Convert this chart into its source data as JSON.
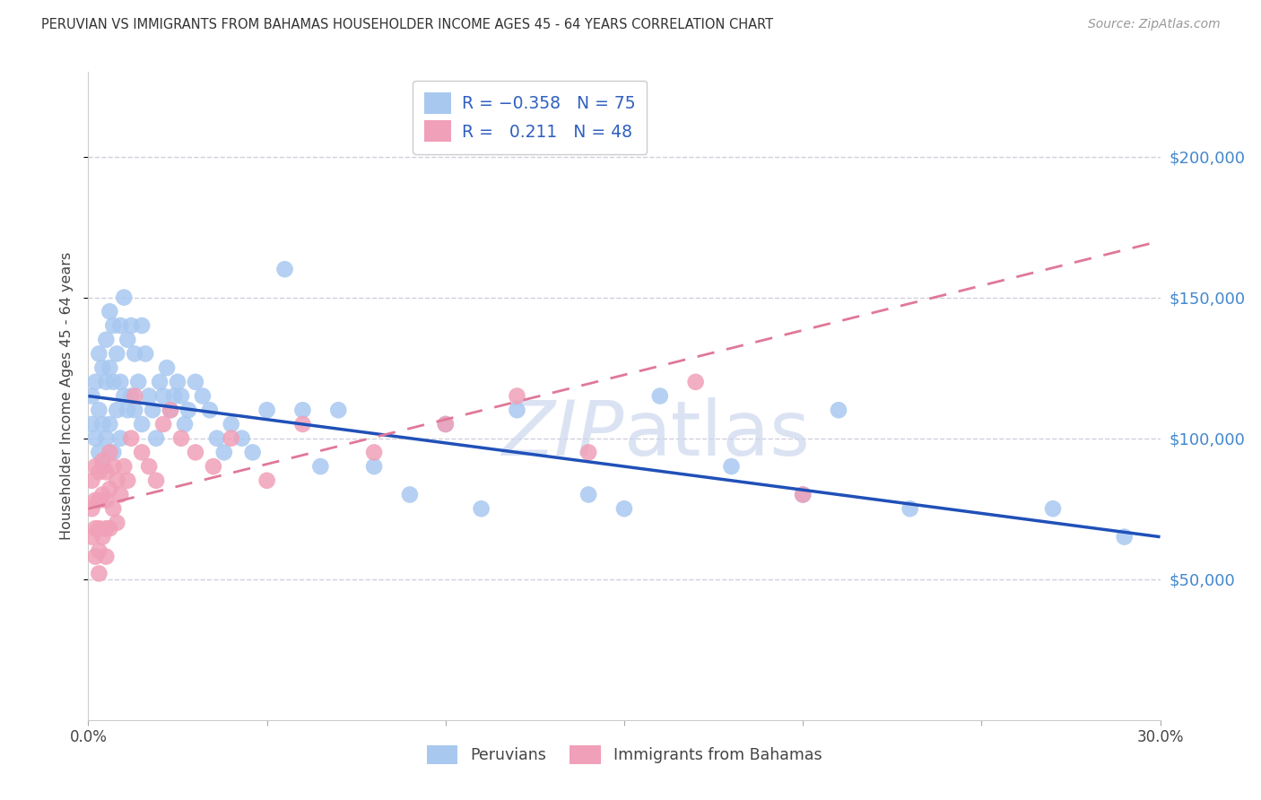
{
  "title": "PERUVIAN VS IMMIGRANTS FROM BAHAMAS HOUSEHOLDER INCOME AGES 45 - 64 YEARS CORRELATION CHART",
  "source": "Source: ZipAtlas.com",
  "ylabel": "Householder Income Ages 45 - 64 years",
  "y_tick_values": [
    50000,
    100000,
    150000,
    200000
  ],
  "y_tick_labels": [
    "$50,000",
    "$100,000",
    "$150,000",
    "$200,000"
  ],
  "peruvians_R": -0.358,
  "peruvians_N": 75,
  "bahamas_R": 0.211,
  "bahamas_N": 48,
  "blue_scatter_color": "#a8c8f0",
  "blue_line_color": "#2050b8",
  "pink_scatter_color": "#f0a0b8",
  "pink_line_color": "#e07898",
  "grid_color": "#d0d0dc",
  "background_color": "#ffffff",
  "right_tick_color": "#4488cc",
  "watermark_color": "#ccd8ee",
  "peruvians_x": [
    0.001,
    0.001,
    0.002,
    0.002,
    0.003,
    0.003,
    0.003,
    0.004,
    0.004,
    0.004,
    0.005,
    0.005,
    0.005,
    0.006,
    0.006,
    0.006,
    0.007,
    0.007,
    0.007,
    0.008,
    0.008,
    0.009,
    0.009,
    0.009,
    0.01,
    0.01,
    0.011,
    0.011,
    0.012,
    0.012,
    0.013,
    0.013,
    0.014,
    0.015,
    0.015,
    0.016,
    0.017,
    0.018,
    0.019,
    0.02,
    0.021,
    0.022,
    0.023,
    0.024,
    0.025,
    0.026,
    0.027,
    0.028,
    0.03,
    0.032,
    0.034,
    0.036,
    0.038,
    0.04,
    0.043,
    0.046,
    0.05,
    0.055,
    0.06,
    0.065,
    0.07,
    0.08,
    0.09,
    0.1,
    0.11,
    0.12,
    0.14,
    0.15,
    0.16,
    0.18,
    0.2,
    0.21,
    0.23,
    0.27,
    0.29
  ],
  "peruvians_y": [
    115000,
    105000,
    120000,
    100000,
    130000,
    110000,
    95000,
    125000,
    105000,
    90000,
    135000,
    120000,
    100000,
    145000,
    125000,
    105000,
    140000,
    120000,
    95000,
    130000,
    110000,
    140000,
    120000,
    100000,
    150000,
    115000,
    135000,
    110000,
    140000,
    115000,
    130000,
    110000,
    120000,
    140000,
    105000,
    130000,
    115000,
    110000,
    100000,
    120000,
    115000,
    125000,
    110000,
    115000,
    120000,
    115000,
    105000,
    110000,
    120000,
    115000,
    110000,
    100000,
    95000,
    105000,
    100000,
    95000,
    110000,
    160000,
    110000,
    90000,
    110000,
    90000,
    80000,
    105000,
    75000,
    110000,
    80000,
    75000,
    115000,
    90000,
    80000,
    110000,
    75000,
    75000,
    65000
  ],
  "bahamas_x": [
    0.001,
    0.001,
    0.001,
    0.002,
    0.002,
    0.002,
    0.002,
    0.003,
    0.003,
    0.003,
    0.003,
    0.003,
    0.004,
    0.004,
    0.004,
    0.005,
    0.005,
    0.005,
    0.005,
    0.006,
    0.006,
    0.006,
    0.007,
    0.007,
    0.008,
    0.008,
    0.009,
    0.01,
    0.011,
    0.012,
    0.013,
    0.015,
    0.017,
    0.019,
    0.021,
    0.023,
    0.026,
    0.03,
    0.035,
    0.04,
    0.05,
    0.06,
    0.08,
    0.1,
    0.12,
    0.14,
    0.17,
    0.2
  ],
  "bahamas_y": [
    85000,
    75000,
    65000,
    90000,
    78000,
    68000,
    58000,
    88000,
    78000,
    68000,
    60000,
    52000,
    92000,
    80000,
    65000,
    88000,
    78000,
    68000,
    58000,
    95000,
    82000,
    68000,
    90000,
    75000,
    85000,
    70000,
    80000,
    90000,
    85000,
    100000,
    115000,
    95000,
    90000,
    85000,
    105000,
    110000,
    100000,
    95000,
    90000,
    100000,
    85000,
    105000,
    95000,
    105000,
    115000,
    95000,
    120000,
    80000
  ]
}
